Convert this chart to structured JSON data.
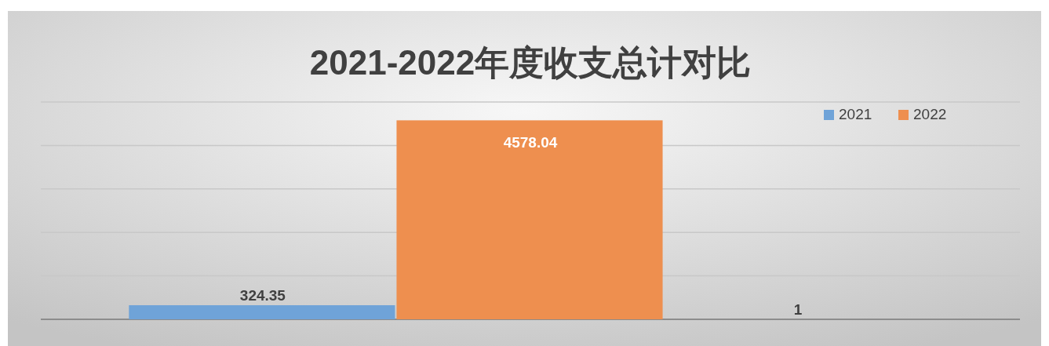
{
  "chart_data": {
    "type": "bar",
    "title": "2021-2022年度收支总计对比",
    "categories": [
      null
    ],
    "series": [
      {
        "name": "2021",
        "color": "#6fa3d8",
        "values": [
          324.35
        ]
      },
      {
        "name": "2022",
        "color": "#ee8f4f",
        "values": [
          4578.04
        ]
      },
      {
        "color": "#a5a5a5",
        "values": [
          1
        ]
      }
    ],
    "ylim": [
      0,
      5000
    ],
    "yticks": [
      {
        "value": 0,
        "label": null
      },
      {
        "value": 1000,
        "label": null
      },
      {
        "value": 2000,
        "label": null
      },
      {
        "value": 3000,
        "label": null
      },
      {
        "value": 4000,
        "label": null
      },
      {
        "value": 5000,
        "label": null
      }
    ],
    "grid": "y",
    "legend": "top right",
    "data_labels": true
  }
}
